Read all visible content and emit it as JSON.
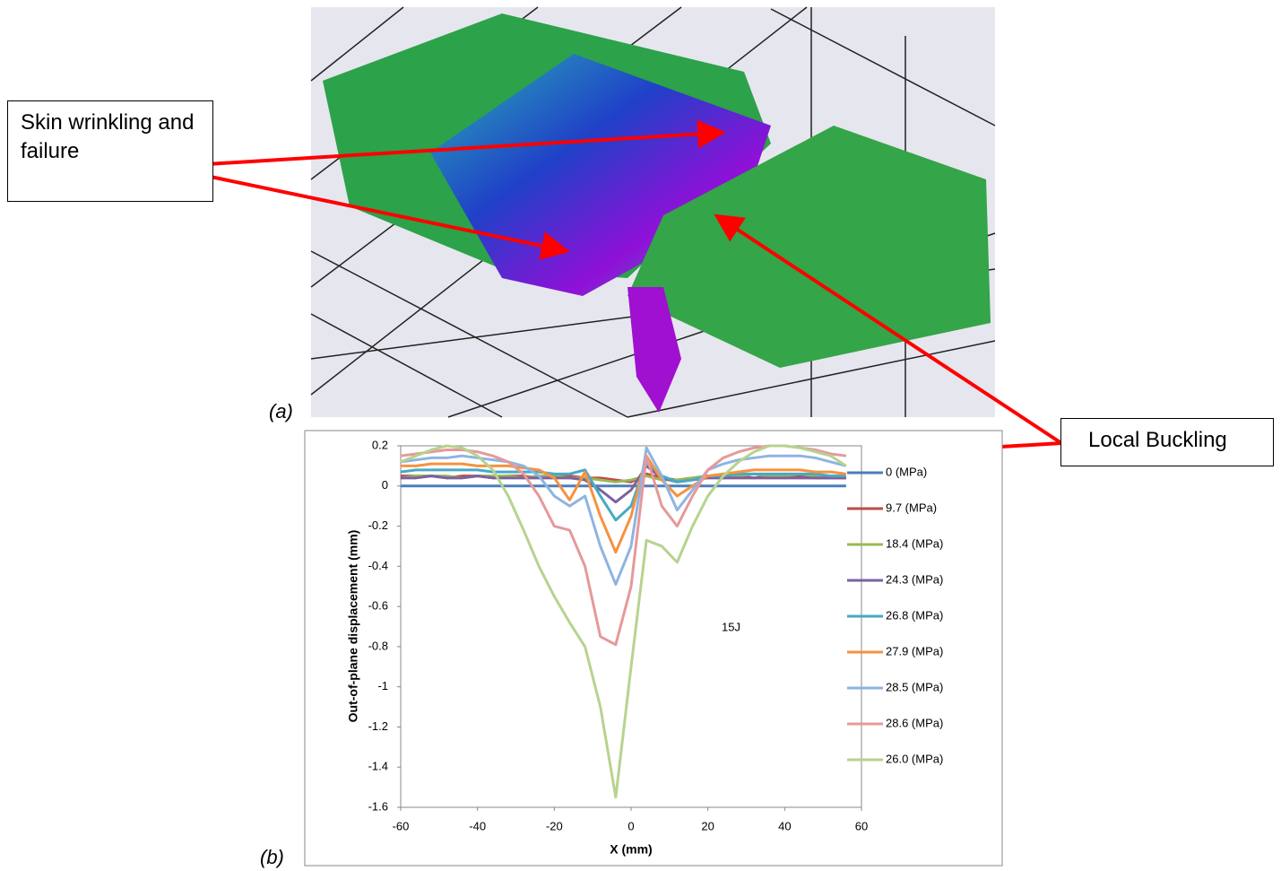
{
  "chart_data": {
    "type": "line",
    "xlabel": "X (mm)",
    "ylabel": "Out-of-plane displacement (mm)",
    "annotations": {
      "panel_a": "(a)",
      "panel_b": "(b)",
      "load": "15J",
      "wrinkling": "Skin wrinkling and failure",
      "buckling": "Local Buckling"
    },
    "x": [
      -60,
      -56,
      -52,
      -48,
      -44,
      -40,
      -36,
      -32,
      -28,
      -24,
      -20,
      -16,
      -12,
      -8,
      -4,
      0,
      4,
      8,
      12,
      16,
      20,
      24,
      28,
      32,
      36,
      40,
      44,
      48,
      52,
      56
    ],
    "xlim": [
      -60,
      60
    ],
    "xticks": [
      -60,
      -40,
      -20,
      0,
      20,
      40,
      60
    ],
    "ylim": [
      -1.6,
      0.2
    ],
    "yticks": [
      0.2,
      0,
      -0.2,
      -0.4,
      -0.6,
      -0.8,
      -1,
      -1.2,
      -1.4,
      -1.6
    ],
    "series": [
      {
        "name": "0 (MPa)",
        "color": "#4a7ebb",
        "values": [
          0,
          0,
          0,
          0,
          0,
          0,
          0,
          0,
          0,
          0,
          0,
          0,
          0,
          0,
          0,
          0,
          0,
          0,
          0,
          0,
          0,
          0,
          0,
          0,
          0,
          0,
          0,
          0,
          0,
          0
        ]
      },
      {
        "name": "9.7 (MPa)",
        "color": "#be4b48",
        "values": [
          0.05,
          0.05,
          0.05,
          0.04,
          0.05,
          0.05,
          0.04,
          0.05,
          0.05,
          0.04,
          0.05,
          0.05,
          0.04,
          0.04,
          0.03,
          0.02,
          0.06,
          0.04,
          0.03,
          0.04,
          0.05,
          0.04,
          0.05,
          0.04,
          0.05,
          0.04,
          0.05,
          0.04,
          0.04,
          0.04
        ]
      },
      {
        "name": "18.4 (MPa)",
        "color": "#98b954",
        "values": [
          0.04,
          0.05,
          0.05,
          0.05,
          0.04,
          0.05,
          0.05,
          0.05,
          0.04,
          0.05,
          0.05,
          0.04,
          0.04,
          0.03,
          0.02,
          0.03,
          0.05,
          0.03,
          0.03,
          0.04,
          0.05,
          0.05,
          0.05,
          0.06,
          0.05,
          0.05,
          0.06,
          0.05,
          0.05,
          0.05
        ]
      },
      {
        "name": "24.3 (MPa)",
        "color": "#7d60a0",
        "values": [
          0.04,
          0.04,
          0.05,
          0.04,
          0.04,
          0.05,
          0.04,
          0.04,
          0.04,
          0.04,
          0.04,
          0.04,
          0.03,
          -0.02,
          -0.08,
          -0.02,
          0.1,
          0.04,
          0.02,
          0.03,
          0.04,
          0.04,
          0.04,
          0.04,
          0.04,
          0.04,
          0.04,
          0.04,
          0.04,
          0.04
        ]
      },
      {
        "name": "26.8 (MPa)",
        "color": "#46aac5",
        "values": [
          0.07,
          0.08,
          0.08,
          0.08,
          0.08,
          0.08,
          0.07,
          0.07,
          0.07,
          0.07,
          0.06,
          0.06,
          0.08,
          -0.05,
          -0.17,
          -0.1,
          0.12,
          0.05,
          0.02,
          0.03,
          0.05,
          0.05,
          0.06,
          0.06,
          0.06,
          0.06,
          0.06,
          0.06,
          0.05,
          0.05
        ]
      },
      {
        "name": "27.9 (MPa)",
        "color": "#f69240",
        "values": [
          0.1,
          0.1,
          0.11,
          0.11,
          0.11,
          0.1,
          0.1,
          0.1,
          0.09,
          0.08,
          0.04,
          -0.07,
          0.07,
          -0.15,
          -0.33,
          -0.15,
          0.15,
          0.03,
          -0.05,
          0.0,
          0.05,
          0.06,
          0.07,
          0.08,
          0.08,
          0.08,
          0.08,
          0.07,
          0.07,
          0.06
        ]
      },
      {
        "name": "28.5 (MPa)",
        "color": "#8eb4e3",
        "values": [
          0.12,
          0.13,
          0.14,
          0.14,
          0.15,
          0.14,
          0.13,
          0.12,
          0.1,
          0.05,
          -0.05,
          -0.1,
          -0.05,
          -0.3,
          -0.49,
          -0.3,
          0.19,
          0.05,
          -0.12,
          -0.02,
          0.08,
          0.11,
          0.13,
          0.14,
          0.15,
          0.15,
          0.15,
          0.14,
          0.12,
          0.1
        ]
      },
      {
        "name": "28.6 (MPa)",
        "color": "#e6999a",
        "values": [
          0.15,
          0.16,
          0.17,
          0.18,
          0.18,
          0.17,
          0.15,
          0.12,
          0.06,
          -0.05,
          -0.2,
          -0.22,
          -0.4,
          -0.75,
          -0.79,
          -0.5,
          0.15,
          -0.1,
          -0.2,
          -0.05,
          0.08,
          0.14,
          0.17,
          0.19,
          0.2,
          0.2,
          0.19,
          0.18,
          0.16,
          0.15
        ]
      },
      {
        "name": "26.0 (MPa)",
        "color": "#b7d38e",
        "values": [
          0.12,
          0.15,
          0.18,
          0.2,
          0.19,
          0.15,
          0.08,
          -0.05,
          -0.22,
          -0.4,
          -0.55,
          -0.68,
          -0.8,
          -1.1,
          -1.55,
          -0.9,
          -0.27,
          -0.3,
          -0.38,
          -0.2,
          -0.05,
          0.05,
          0.12,
          0.17,
          0.2,
          0.2,
          0.19,
          0.17,
          0.15,
          0.1
        ]
      }
    ]
  }
}
